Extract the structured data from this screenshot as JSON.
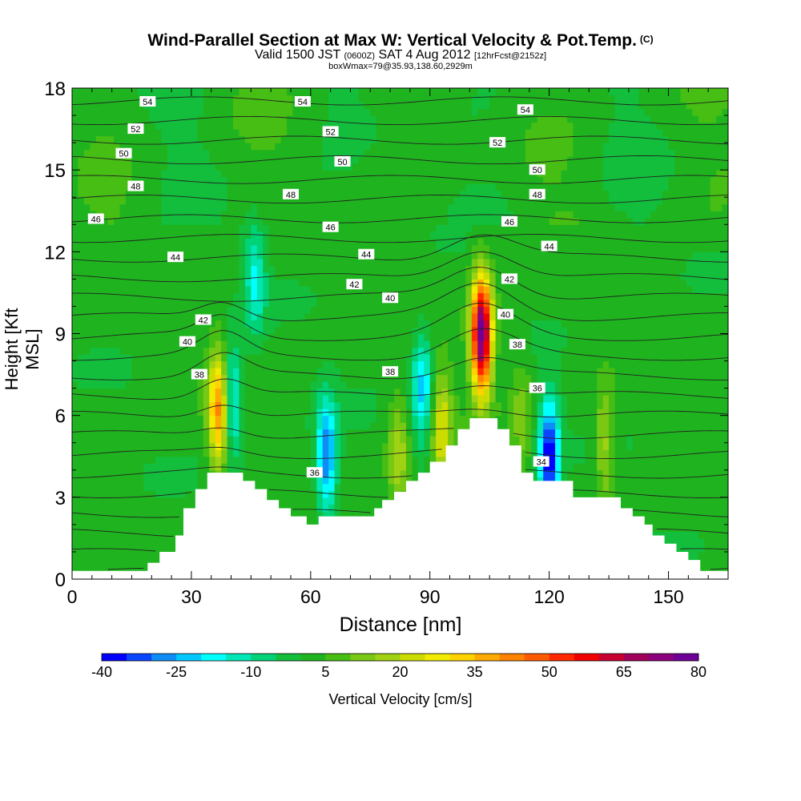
{
  "header": {
    "title": "Wind-Parallel Section at Max W: Vertical Velocity & Pot.Temp.",
    "copyright": "(C)",
    "valid_prefix": "Valid 1500 JST",
    "zulu": "(0600Z)",
    "valid_date": "SAT 4 Aug 2012",
    "forecast": "[12hrFcst@2152z]",
    "boxwmax": "boxWmax=79@35.93,138.60,2929m"
  },
  "colorbar": {
    "label": "Vertical Velocity [cm/s]",
    "ticks": [
      "-40",
      "-25",
      "-10",
      "5",
      "20",
      "35",
      "50",
      "65",
      "80"
    ],
    "levels": [
      -40,
      -35,
      -30,
      -25,
      -20,
      -15,
      -10,
      -5,
      0,
      5,
      10,
      15,
      20,
      25,
      30,
      35,
      40,
      45,
      50,
      55,
      60,
      65,
      70,
      75,
      80
    ],
    "colors": [
      "#0000ff",
      "#0a46ff",
      "#0f8cf5",
      "#00c8ff",
      "#00ffff",
      "#00e6b4",
      "#00d278",
      "#12be3c",
      "#1fb41f",
      "#46be14",
      "#78c814",
      "#a0d214",
      "#cddc00",
      "#f0eb00",
      "#ffd200",
      "#ffaa00",
      "#ff8200",
      "#ff5a00",
      "#ff2800",
      "#f00000",
      "#c80032",
      "#a0005a",
      "#8c007d",
      "#6e0096"
    ]
  },
  "chart_data": {
    "type": "heatmap",
    "xlabel": "Distance [nm]",
    "ylabel": "Height [Kft MSL]",
    "xlim": [
      0,
      165
    ],
    "ylim": [
      0,
      18
    ],
    "xticks": [
      "0",
      "30",
      "60",
      "90",
      "120",
      "150"
    ],
    "yticks": [
      "0",
      "3",
      "6",
      "9",
      "12",
      "15",
      "18"
    ],
    "background_value_cm_s": 2,
    "updraft_cores": [
      {
        "x_nm": 37,
        "height_kft": 6.2,
        "peak_cm_s": 45
      },
      {
        "x_nm": 103,
        "height_kft": 9,
        "peak_cm_s": 79
      },
      {
        "x_nm": 93,
        "height_kft": 5.5,
        "peak_cm_s": 25
      },
      {
        "x_nm": 82,
        "height_kft": 4.5,
        "peak_cm_s": 20
      },
      {
        "x_nm": 134,
        "height_kft": 5,
        "peak_cm_s": 18
      },
      {
        "x_nm": 113,
        "height_kft": 6,
        "peak_cm_s": 12
      }
    ],
    "downdraft_cores": [
      {
        "x_nm": 40,
        "height_kft": 6.5,
        "peak_cm_s": -25
      },
      {
        "x_nm": 64,
        "height_kft": 4.5,
        "peak_cm_s": -30
      },
      {
        "x_nm": 88,
        "height_kft": 7,
        "peak_cm_s": -22
      },
      {
        "x_nm": 120,
        "height_kft": 4.5,
        "peak_cm_s": -40
      },
      {
        "x_nm": 46,
        "height_kft": 11,
        "peak_cm_s": -15
      }
    ],
    "terrain_profile_kft": [
      [
        0,
        0.3
      ],
      [
        19,
        0.3
      ],
      [
        19,
        0.6
      ],
      [
        22,
        0.6
      ],
      [
        22,
        1
      ],
      [
        26,
        1
      ],
      [
        26,
        1.6
      ],
      [
        28,
        1.6
      ],
      [
        28,
        2.6
      ],
      [
        31,
        2.6
      ],
      [
        31,
        3.3
      ],
      [
        34,
        3.3
      ],
      [
        34,
        3.9
      ],
      [
        43,
        3.9
      ],
      [
        43,
        3.6
      ],
      [
        46,
        3.6
      ],
      [
        46,
        3.3
      ],
      [
        49,
        3.3
      ],
      [
        49,
        2.9
      ],
      [
        52,
        2.9
      ],
      [
        52,
        2.6
      ],
      [
        55,
        2.6
      ],
      [
        55,
        2.3
      ],
      [
        59,
        2.3
      ],
      [
        59,
        2
      ],
      [
        62,
        2
      ],
      [
        62,
        2.3
      ],
      [
        76,
        2.3
      ],
      [
        76,
        2.6
      ],
      [
        78,
        2.6
      ],
      [
        78,
        2.9
      ],
      [
        81,
        2.9
      ],
      [
        81,
        3.2
      ],
      [
        84,
        3.2
      ],
      [
        84,
        3.6
      ],
      [
        87,
        3.6
      ],
      [
        87,
        3.9
      ],
      [
        90,
        3.9
      ],
      [
        90,
        4.3
      ],
      [
        94,
        4.3
      ],
      [
        94,
        4.9
      ],
      [
        97,
        4.9
      ],
      [
        97,
        5.5
      ],
      [
        100,
        5.5
      ],
      [
        100,
        5.9
      ],
      [
        107,
        5.9
      ],
      [
        107,
        5.5
      ],
      [
        110,
        5.5
      ],
      [
        110,
        4.9
      ],
      [
        113,
        4.9
      ],
      [
        113,
        3.9
      ],
      [
        116,
        3.9
      ],
      [
        116,
        3.6
      ],
      [
        126,
        3.6
      ],
      [
        126,
        3
      ],
      [
        138,
        3
      ],
      [
        138,
        2.6
      ],
      [
        141,
        2.6
      ],
      [
        141,
        2.3
      ],
      [
        144,
        2.3
      ],
      [
        144,
        2
      ],
      [
        146,
        2
      ],
      [
        146,
        1.6
      ],
      [
        149,
        1.6
      ],
      [
        149,
        1.3
      ],
      [
        152,
        1.3
      ],
      [
        152,
        1
      ],
      [
        155,
        1
      ],
      [
        155,
        0.7
      ],
      [
        158,
        0.7
      ],
      [
        158,
        0.3
      ],
      [
        165,
        0.3
      ]
    ],
    "isentrope_labels": [
      {
        "text": "54",
        "x_nm": 19,
        "height_kft": 17.5
      },
      {
        "text": "54",
        "x_nm": 58,
        "height_kft": 17.5
      },
      {
        "text": "54",
        "x_nm": 114,
        "height_kft": 17.2
      },
      {
        "text": "52",
        "x_nm": 16,
        "height_kft": 16.5
      },
      {
        "text": "52",
        "x_nm": 65,
        "height_kft": 16.4
      },
      {
        "text": "52",
        "x_nm": 107,
        "height_kft": 16
      },
      {
        "text": "50",
        "x_nm": 13,
        "height_kft": 15.6
      },
      {
        "text": "50",
        "x_nm": 68,
        "height_kft": 15.3
      },
      {
        "text": "50",
        "x_nm": 117,
        "height_kft": 15
      },
      {
        "text": "48",
        "x_nm": 16,
        "height_kft": 14.4
      },
      {
        "text": "48",
        "x_nm": 55,
        "height_kft": 14.1
      },
      {
        "text": "48",
        "x_nm": 117,
        "height_kft": 14.1
      },
      {
        "text": "46",
        "x_nm": 6,
        "height_kft": 13.2
      },
      {
        "text": "46",
        "x_nm": 65,
        "height_kft": 12.9
      },
      {
        "text": "46",
        "x_nm": 110,
        "height_kft": 13.1
      },
      {
        "text": "44",
        "x_nm": 26,
        "height_kft": 11.8
      },
      {
        "text": "44",
        "x_nm": 74,
        "height_kft": 11.9
      },
      {
        "text": "44",
        "x_nm": 120,
        "height_kft": 12.2
      },
      {
        "text": "42",
        "x_nm": 33,
        "height_kft": 9.5
      },
      {
        "text": "42",
        "x_nm": 71,
        "height_kft": 10.8
      },
      {
        "text": "42",
        "x_nm": 110,
        "height_kft": 11
      },
      {
        "text": "40",
        "x_nm": 29,
        "height_kft": 8.7
      },
      {
        "text": "40",
        "x_nm": 80,
        "height_kft": 10.3
      },
      {
        "text": "40",
        "x_nm": 109,
        "height_kft": 9.7
      },
      {
        "text": "38",
        "x_nm": 32,
        "height_kft": 7.5
      },
      {
        "text": "38",
        "x_nm": 80,
        "height_kft": 7.6
      },
      {
        "text": "38",
        "x_nm": 112,
        "height_kft": 8.6
      },
      {
        "text": "36",
        "x_nm": 61,
        "height_kft": 3.9
      },
      {
        "text": "36",
        "x_nm": 117,
        "height_kft": 7
      },
      {
        "text": "34",
        "x_nm": 118,
        "height_kft": 4.3
      }
    ]
  }
}
